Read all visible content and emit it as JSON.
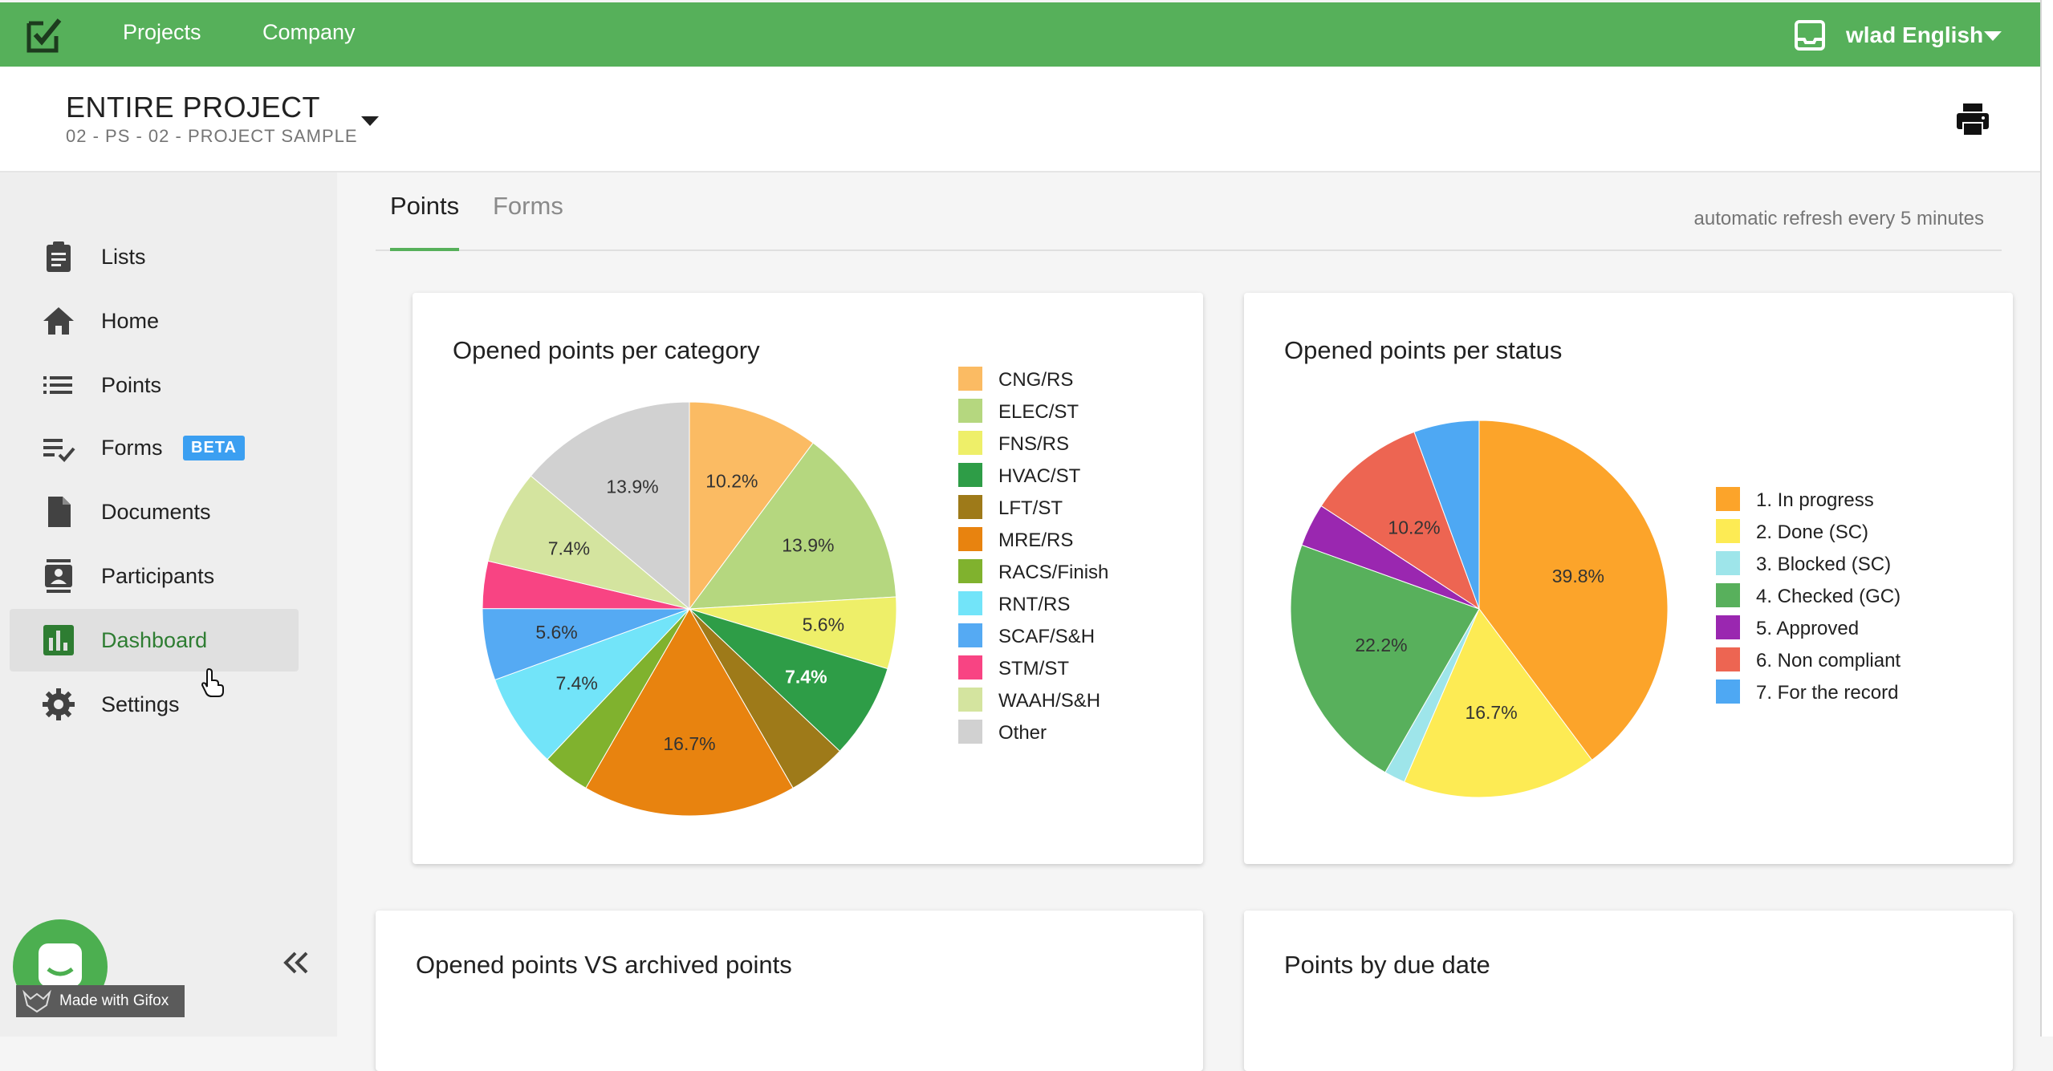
{
  "topbar": {
    "nav": [
      "Projects",
      "Company"
    ],
    "user": "wlad English",
    "accent": "#56b05a"
  },
  "project": {
    "title": "ENTIRE PROJECT",
    "subtitle": "02 - PS - 02 - PROJECT SAMPLE"
  },
  "sidebar": {
    "items": [
      {
        "label": "Lists",
        "icon": "clipboard-icon"
      },
      {
        "label": "Home",
        "icon": "home-icon"
      },
      {
        "label": "Points",
        "icon": "list-icon"
      },
      {
        "label": "Forms",
        "icon": "checklist-icon",
        "badge": "BETA"
      },
      {
        "label": "Documents",
        "icon": "document-icon"
      },
      {
        "label": "Participants",
        "icon": "contacts-icon"
      },
      {
        "label": "Dashboard",
        "icon": "bar-chart-icon",
        "active": true
      },
      {
        "label": "Settings",
        "icon": "gear-icon"
      }
    ],
    "watermark": "Made with Gifox"
  },
  "tabs": {
    "items": [
      "Points",
      "Forms"
    ],
    "active": "Points",
    "refresh_note": "automatic refresh every 5 minutes"
  },
  "cards": {
    "category_title": "Opened points per category",
    "status_title": "Opened points per status",
    "archived_title": "Opened points VS archived points",
    "due_title": "Points by due date"
  },
  "chart_data": [
    {
      "type": "pie",
      "title": "Opened points per category",
      "legend_position": "right",
      "categories": [
        "CNG/RS",
        "ELEC/ST",
        "FNS/RS",
        "HVAC/ST",
        "LFT/ST",
        "MRE/RS",
        "RACS/Finish",
        "RNT/RS",
        "SCAF/S&H",
        "STM/ST",
        "WAAH/S&H",
        "Other"
      ],
      "values": [
        10.2,
        13.9,
        5.6,
        7.4,
        4.6,
        16.7,
        3.7,
        7.4,
        5.6,
        3.7,
        7.4,
        13.9
      ],
      "labels": [
        "10.2%",
        "13.9%",
        "5.6%",
        "7.4%",
        "",
        "16.7%",
        "",
        "7.4%",
        "5.6%",
        "",
        "7.4%",
        "13.9%"
      ],
      "colors": [
        "#fbbb63",
        "#b5d77f",
        "#eeef69",
        "#2e9d47",
        "#9e7a19",
        "#e8830f",
        "#80b22e",
        "#72e4f9",
        "#55aaf3",
        "#f84483",
        "#d4e49f",
        "#d1d1d1"
      ]
    },
    {
      "type": "pie",
      "title": "Opened points per status",
      "legend_position": "right",
      "categories": [
        "1. In progress",
        "2. Done (SC)",
        "3. Blocked (SC)",
        "4. Checked (GC)",
        "5. Approved",
        "6. Non compliant",
        "7. For the record"
      ],
      "values": [
        39.8,
        16.7,
        1.8,
        22.2,
        3.7,
        10.2,
        5.6
      ],
      "labels": [
        "39.8%",
        "16.7%",
        "",
        "22.2%",
        "",
        "10.2%",
        ""
      ],
      "colors": [
        "#fca42a",
        "#fdeb54",
        "#9ee5ea",
        "#58b05c",
        "#9a27b0",
        "#ed6552",
        "#4ea8f3"
      ]
    }
  ]
}
